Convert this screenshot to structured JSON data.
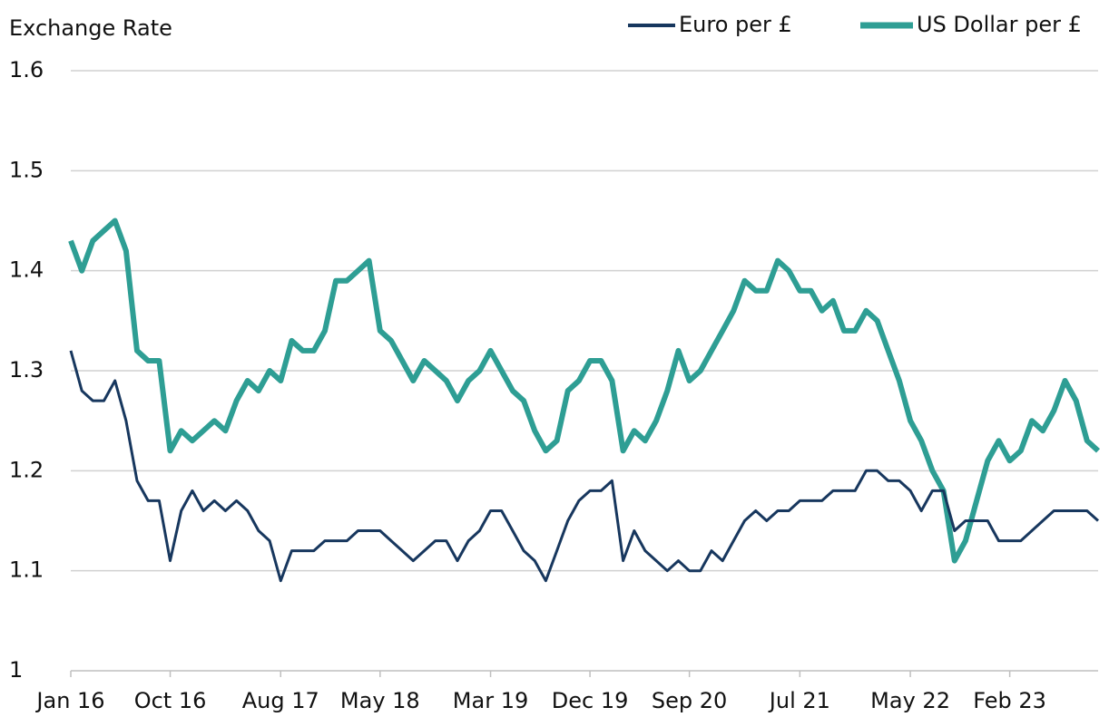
{
  "chart_data": {
    "type": "line",
    "y_axis_label": "Exchange Rate",
    "categories": [
      "Jan 16",
      null,
      null,
      null,
      null,
      null,
      null,
      null,
      null,
      "Oct 16",
      null,
      null,
      null,
      null,
      null,
      null,
      null,
      null,
      null,
      "Aug 17",
      null,
      null,
      null,
      null,
      null,
      null,
      null,
      null,
      "May 18",
      null,
      null,
      null,
      null,
      null,
      null,
      null,
      null,
      null,
      "Mar 19",
      null,
      null,
      null,
      null,
      null,
      null,
      null,
      null,
      "Dec 19",
      null,
      null,
      null,
      null,
      null,
      null,
      null,
      null,
      "Sep 20",
      null,
      null,
      null,
      null,
      null,
      null,
      null,
      null,
      null,
      "Jul 21",
      null,
      null,
      null,
      null,
      null,
      null,
      null,
      null,
      null,
      "May 22",
      null,
      null,
      null,
      null,
      null,
      null,
      null,
      null,
      "Feb 23",
      null,
      null,
      null,
      null,
      null,
      null,
      null,
      null
    ],
    "series": [
      {
        "name": "Euro per £",
        "color": "#17375e",
        "values": [
          1.32,
          1.28,
          1.27,
          1.27,
          1.29,
          1.25,
          1.19,
          1.17,
          1.17,
          1.11,
          1.16,
          1.18,
          1.16,
          1.17,
          1.16,
          1.17,
          1.16,
          1.14,
          1.13,
          1.09,
          1.12,
          1.12,
          1.12,
          1.13,
          1.13,
          1.13,
          1.14,
          1.14,
          1.14,
          1.13,
          1.12,
          1.11,
          1.12,
          1.13,
          1.13,
          1.11,
          1.13,
          1.14,
          1.16,
          1.16,
          1.14,
          1.12,
          1.11,
          1.09,
          1.12,
          1.15,
          1.17,
          1.18,
          1.18,
          1.19,
          1.11,
          1.14,
          1.12,
          1.11,
          1.1,
          1.11,
          1.1,
          1.1,
          1.12,
          1.11,
          1.13,
          1.15,
          1.16,
          1.15,
          1.16,
          1.16,
          1.17,
          1.17,
          1.17,
          1.18,
          1.18,
          1.18,
          1.2,
          1.2,
          1.19,
          1.19,
          1.18,
          1.16,
          1.18,
          1.18,
          1.14,
          1.15,
          1.15,
          1.15,
          1.13,
          1.13,
          1.13,
          1.14,
          1.15,
          1.16,
          1.16,
          1.16,
          1.16,
          1.15
        ]
      },
      {
        "name": "US Dollar per £",
        "color": "#2e9e94",
        "values": [
          1.43,
          1.4,
          1.43,
          1.44,
          1.45,
          1.42,
          1.32,
          1.31,
          1.31,
          1.22,
          1.24,
          1.23,
          1.24,
          1.25,
          1.24,
          1.27,
          1.29,
          1.28,
          1.3,
          1.29,
          1.33,
          1.32,
          1.32,
          1.34,
          1.39,
          1.39,
          1.4,
          1.41,
          1.34,
          1.33,
          1.31,
          1.29,
          1.31,
          1.3,
          1.29,
          1.27,
          1.29,
          1.3,
          1.32,
          1.3,
          1.28,
          1.27,
          1.24,
          1.22,
          1.23,
          1.28,
          1.29,
          1.31,
          1.31,
          1.29,
          1.22,
          1.24,
          1.23,
          1.25,
          1.28,
          1.32,
          1.29,
          1.3,
          1.32,
          1.34,
          1.36,
          1.39,
          1.38,
          1.38,
          1.41,
          1.4,
          1.38,
          1.38,
          1.36,
          1.37,
          1.34,
          1.34,
          1.36,
          1.35,
          1.32,
          1.29,
          1.25,
          1.23,
          1.2,
          1.18,
          1.11,
          1.13,
          1.17,
          1.21,
          1.23,
          1.21,
          1.22,
          1.25,
          1.24,
          1.26,
          1.29,
          1.27,
          1.23,
          1.22
        ]
      }
    ],
    "ylim": [
      1,
      1.6
    ],
    "yticks": [
      1,
      1.1,
      1.2,
      1.3,
      1.4,
      1.5,
      1.6
    ],
    "grid": true,
    "legend": "top-right"
  }
}
